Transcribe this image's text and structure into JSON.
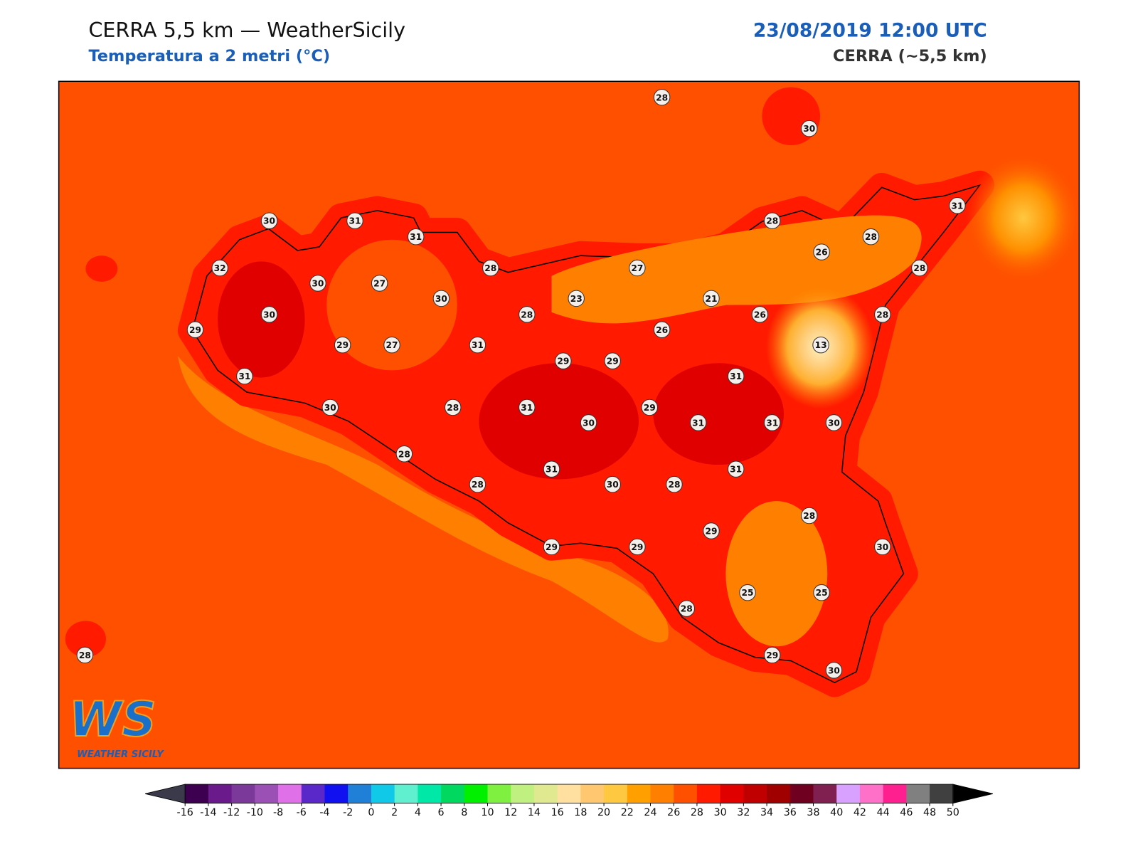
{
  "header": {
    "title": "CERRA 5,5 km — WeatherSicily",
    "subtitle": "Temperatura a 2 metri (°C)",
    "datetime": "23/08/2019 12:00 UTC",
    "model": "CERRA (~5,5 km)"
  },
  "stations": [
    28,
    30,
    30,
    31,
    31,
    28,
    31,
    28,
    26,
    32,
    30,
    27,
    28,
    27,
    28,
    30,
    23,
    21,
    30,
    28,
    26,
    28,
    29,
    26,
    29,
    27,
    31,
    13,
    29,
    29,
    31,
    31,
    30,
    28,
    31,
    29,
    30,
    31,
    31,
    30,
    28,
    31,
    31,
    28,
    30,
    28,
    28,
    29,
    29,
    29,
    30,
    25,
    25,
    28,
    29,
    30,
    28
  ],
  "colorbar": {
    "ticks": [
      -16,
      -14,
      -12,
      -10,
      -8,
      -6,
      -4,
      -2,
      0,
      2,
      4,
      6,
      8,
      10,
      12,
      14,
      16,
      18,
      20,
      22,
      24,
      26,
      28,
      30,
      32,
      34,
      36,
      38,
      40,
      42,
      44,
      46,
      48,
      50
    ],
    "colors": [
      "#3d0050",
      "#6a1a8a",
      "#7b3a9a",
      "#9a50b5",
      "#e070e8",
      "#5a28c8",
      "#1010f0",
      "#2080d8",
      "#10c8e8",
      "#60f0d0",
      "#00e8a8",
      "#00d860",
      "#00f000",
      "#80f040",
      "#c0f080",
      "#e0e890",
      "#ffe0a0",
      "#ffc870",
      "#ffc840",
      "#ffa000",
      "#ff8000",
      "#ff5000",
      "#ff1a00",
      "#e00000",
      "#c00000",
      "#a00000",
      "#700020",
      "#802050",
      "#d8a0ff",
      "#ff70c8",
      "#ff2090",
      "#808080",
      "#404040"
    ],
    "under": "#3a3a4a",
    "over": "#000000"
  },
  "logo": {
    "mark": "WS",
    "text": "WEATHER SICILY"
  }
}
